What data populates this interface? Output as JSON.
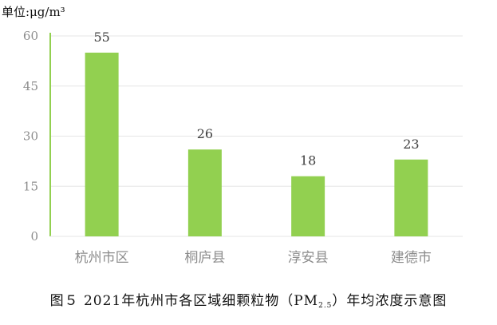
{
  "chart_data": {
    "type": "bar",
    "unit_label": "单位:μg/m³",
    "categories": [
      "杭州市区",
      "桐庐县",
      "淳安县",
      "建德市"
    ],
    "values": [
      55,
      26,
      18,
      23
    ],
    "data_labels": [
      "55",
      "26",
      "18",
      "23"
    ],
    "ylim": [
      0,
      60
    ],
    "yticks": [
      0,
      15,
      30,
      45,
      60
    ],
    "grid": true,
    "legend": "none",
    "colors": {
      "bar": "#92d050",
      "axis": "#92d050",
      "grid": "#e6e6e6",
      "tick_text": "#8c8c8c",
      "label_text": "#404040"
    }
  },
  "caption": {
    "main": "图５  2021年杭州市各区域细颗粒物（PM",
    "sub": "2.5",
    "tail": "）年均浓度示意图"
  }
}
